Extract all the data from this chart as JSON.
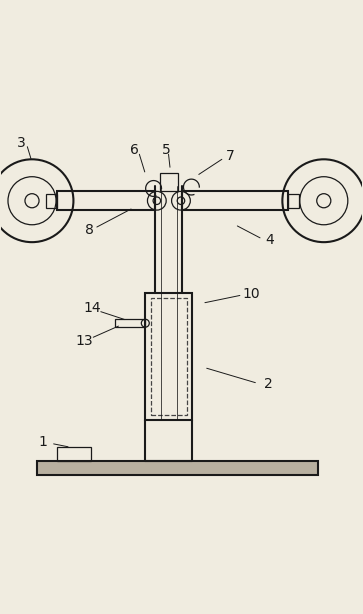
{
  "bg_color": "#f0ece0",
  "line_color": "#1a1a1a",
  "label_color": "#1a1a1a",
  "figsize": [
    3.63,
    6.14
  ],
  "dpi": 100
}
